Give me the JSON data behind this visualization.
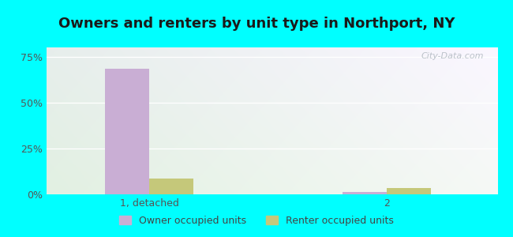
{
  "title": "Owners and renters by unit type in Northport, NY",
  "categories": [
    "1, detached",
    "2"
  ],
  "owner_values": [
    68.5,
    1.5
  ],
  "renter_values": [
    8.5,
    3.5
  ],
  "owner_color": "#c9aed4",
  "renter_color": "#c5c87a",
  "yticks": [
    0,
    25,
    50,
    75
  ],
  "ytick_labels": [
    "0%",
    "25%",
    "50%",
    "75%"
  ],
  "ylim": [
    0,
    80
  ],
  "bar_width": 0.28,
  "outer_bg": "#00ffff",
  "watermark": "City-Data.com",
  "title_fontsize": 13,
  "tick_fontsize": 9,
  "legend_fontsize": 9
}
